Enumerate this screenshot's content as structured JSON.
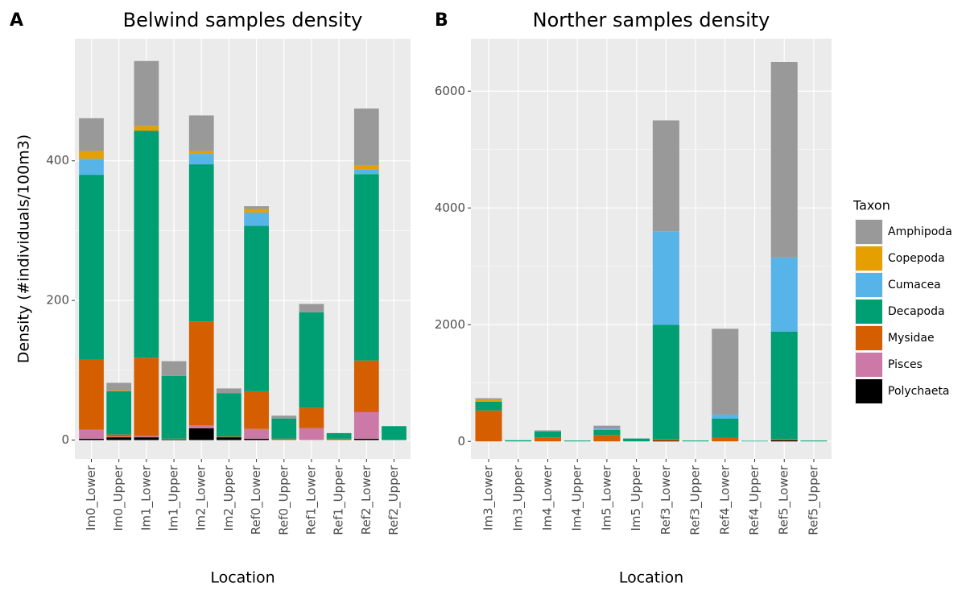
{
  "chart_data": [
    {
      "type": "bar",
      "stacked": true,
      "panel_label": "A",
      "title": "Belwind samples density",
      "x_label": "Location",
      "y_label": "Density (#individuals/100m3)",
      "legend_title": "Taxon",
      "legend": "right",
      "categories": [
        "Im0_Lower",
        "Im0_Upper",
        "Im1_Lower",
        "Im1_Upper",
        "Im2_Lower",
        "Im2_Upper",
        "Ref0_Lower",
        "Ref0_Upper",
        "Ref1_Lower",
        "Ref1_Upper",
        "Ref2_Lower",
        "Ref2_Upper"
      ],
      "ylim": [
        -27,
        575
      ],
      "yticks": [
        0,
        200,
        400
      ],
      "grid": true,
      "series": [
        {
          "name": "Polychaeta",
          "color": "#000000",
          "values": [
            2,
            4,
            4,
            1,
            17,
            4,
            2,
            0,
            0,
            0,
            2,
            0
          ]
        },
        {
          "name": "Pisces",
          "color": "#cc79a7",
          "values": [
            13,
            1,
            2,
            0,
            4,
            0,
            14,
            0,
            17,
            0,
            38,
            0
          ]
        },
        {
          "name": "Mysidae",
          "color": "#d55e00",
          "values": [
            101,
            3,
            112,
            1,
            149,
            1,
            54,
            2,
            29,
            2,
            74,
            0
          ]
        },
        {
          "name": "Decapoda",
          "color": "#009e73",
          "values": [
            264,
            62,
            325,
            90,
            225,
            62,
            237,
            29,
            137,
            8,
            267,
            20
          ]
        },
        {
          "name": "Cumacea",
          "color": "#56b4e9",
          "values": [
            23,
            0,
            0,
            0,
            15,
            0,
            19,
            0,
            0,
            0,
            7,
            0
          ]
        },
        {
          "name": "Copepoda",
          "color": "#e69f00",
          "values": [
            11,
            1,
            7,
            0,
            4,
            0,
            5,
            0,
            0,
            0,
            5,
            0
          ]
        },
        {
          "name": "Amphipoda",
          "color": "#999999",
          "values": [
            47,
            11,
            93,
            21,
            51,
            7,
            4,
            4,
            12,
            0,
            82,
            0
          ]
        }
      ]
    },
    {
      "type": "bar",
      "stacked": true,
      "panel_label": "B",
      "title": "Norther samples density",
      "x_label": "Location",
      "categories": [
        "Im3_Lower",
        "Im3_Upper",
        "Im4_Lower",
        "Im4_Upper",
        "Im5_Lower",
        "Im5_Upper",
        "Ref3_Lower",
        "Ref3_Upper",
        "Ref4_Lower",
        "Ref4_Upper",
        "Ref5_Lower",
        "Ref5_Upper"
      ],
      "ylim": [
        -300,
        6900
      ],
      "yticks": [
        0,
        2000,
        4000,
        6000
      ],
      "grid": true,
      "series": [
        {
          "name": "Polychaeta",
          "color": "#000000",
          "values": [
            0,
            0,
            0,
            0,
            0,
            0,
            10,
            0,
            0,
            0,
            20,
            0
          ]
        },
        {
          "name": "Pisces",
          "color": "#cc79a7",
          "values": [
            0,
            0,
            0,
            0,
            0,
            0,
            0,
            0,
            0,
            0,
            0,
            0
          ]
        },
        {
          "name": "Mysidae",
          "color": "#d55e00",
          "values": [
            530,
            0,
            70,
            0,
            110,
            0,
            30,
            0,
            60,
            0,
            20,
            0
          ]
        },
        {
          "name": "Decapoda",
          "color": "#009e73",
          "values": [
            150,
            20,
            100,
            15,
            90,
            50,
            1960,
            15,
            330,
            10,
            1840,
            15
          ]
        },
        {
          "name": "Cumacea",
          "color": "#56b4e9",
          "values": [
            0,
            0,
            0,
            0,
            20,
            0,
            1600,
            0,
            70,
            0,
            1270,
            0
          ]
        },
        {
          "name": "Copepoda",
          "color": "#e69f00",
          "values": [
            30,
            0,
            0,
            0,
            0,
            0,
            0,
            0,
            0,
            0,
            0,
            0
          ]
        },
        {
          "name": "Amphipoda",
          "color": "#999999",
          "values": [
            30,
            0,
            20,
            0,
            50,
            0,
            1900,
            0,
            1470,
            0,
            3350,
            0
          ]
        }
      ]
    }
  ]
}
